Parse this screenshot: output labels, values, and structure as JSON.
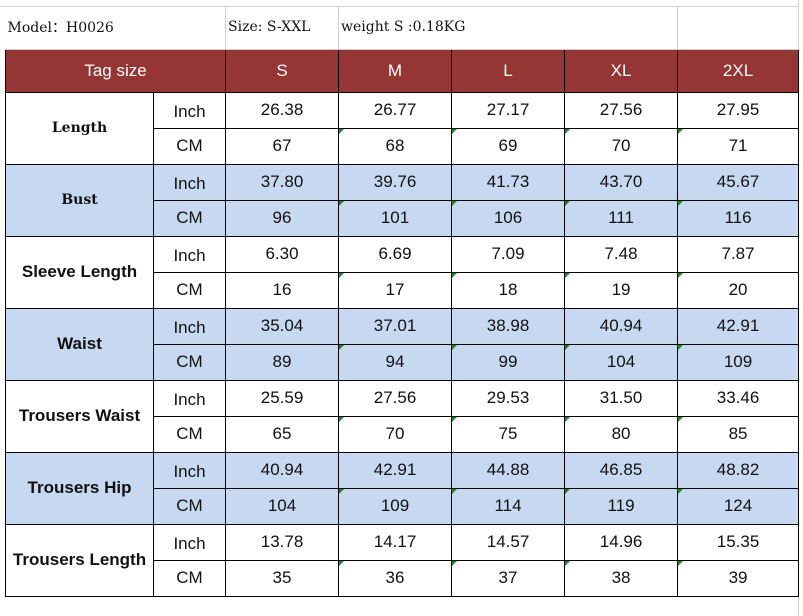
{
  "info": {
    "model": "Model：H0026",
    "size": "Size: S-XXL",
    "weight": "weight S :0.18KG"
  },
  "header": {
    "tag_label": "Tag size",
    "sizes": [
      "S",
      "M",
      "L",
      "XL",
      "2XL"
    ]
  },
  "measurements": [
    {
      "name": "Length",
      "inch": [
        "26.38",
        "26.77",
        "27.17",
        "27.56",
        "27.95"
      ],
      "cm": [
        "67",
        "68",
        "69",
        "70",
        "71"
      ]
    },
    {
      "name": "Bust",
      "inch": [
        "37.80",
        "39.76",
        "41.73",
        "43.70",
        "45.67"
      ],
      "cm": [
        "96",
        "101",
        "106",
        "111",
        "116"
      ]
    },
    {
      "name": "Sleeve  Length",
      "inch": [
        "6.30",
        "6.69",
        "7.09",
        "7.48",
        "7.87"
      ],
      "cm": [
        "16",
        "17",
        "18",
        "19",
        "20"
      ]
    },
    {
      "name": "Waist",
      "inch": [
        "35.04",
        "37.01",
        "38.98",
        "40.94",
        "42.91"
      ],
      "cm": [
        "89",
        "94",
        "99",
        "104",
        "109"
      ]
    },
    {
      "name": "Trousers Waist",
      "inch": [
        "25.59",
        "27.56",
        "29.53",
        "31.50",
        "33.46"
      ],
      "cm": [
        "65",
        "70",
        "75",
        "80",
        "85"
      ]
    },
    {
      "name": "Trousers Hip",
      "inch": [
        "40.94",
        "42.91",
        "44.88",
        "46.85",
        "48.82"
      ],
      "cm": [
        "104",
        "109",
        "114",
        "119",
        "124"
      ]
    },
    {
      "name": "Trousers Length",
      "inch": [
        "13.78",
        "14.17",
        "14.57",
        "14.96",
        "15.35"
      ],
      "cm": [
        "35",
        "36",
        "37",
        "38",
        "39"
      ]
    }
  ],
  "units": {
    "inch": "Inch",
    "cm": "CM"
  },
  "colors": {
    "header_bg": "#963634",
    "band_bg": "#c6d9f0",
    "flag": "#1e8b1e"
  }
}
